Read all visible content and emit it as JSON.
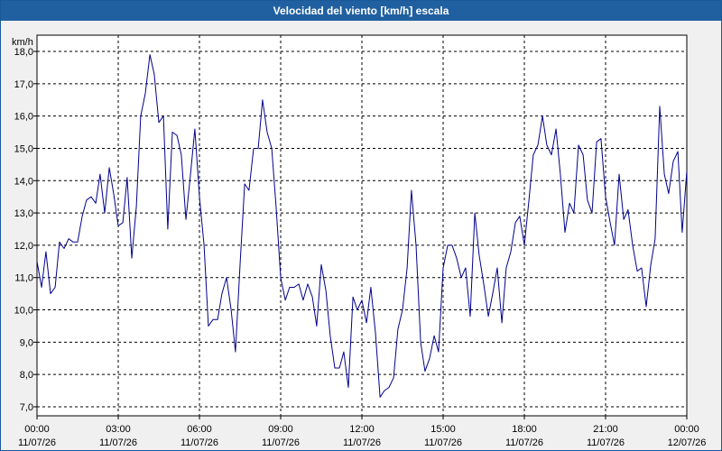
{
  "window": {
    "title": "Velocidad del viento [km/h] escala"
  },
  "chart_data": {
    "type": "line",
    "title": "Velocidad del viento [km/h] escala",
    "ylabel": "km/h",
    "xlabel": "",
    "ylim": [
      7.0,
      18.0
    ],
    "yticks": [
      7.0,
      8.0,
      9.0,
      10.0,
      11.0,
      12.0,
      13.0,
      14.0,
      15.0,
      16.0,
      17.0,
      18.0
    ],
    "ytick_labels": [
      "7,0",
      "8,0",
      "9,0",
      "10,0",
      "11,0",
      "12,0",
      "13,0",
      "14,0",
      "15,0",
      "16,0",
      "17,0",
      "18,0"
    ],
    "xlim": [
      0,
      24
    ],
    "xticks": [
      {
        "hour": 0,
        "time": "00:00",
        "date": "11/07/26"
      },
      {
        "hour": 3,
        "time": "03:00",
        "date": "11/07/26"
      },
      {
        "hour": 6,
        "time": "06:00",
        "date": "11/07/26"
      },
      {
        "hour": 9,
        "time": "09:00",
        "date": "11/07/26"
      },
      {
        "hour": 12,
        "time": "12:00",
        "date": "11/07/26"
      },
      {
        "hour": 15,
        "time": "15:00",
        "date": "11/07/26"
      },
      {
        "hour": 18,
        "time": "18:00",
        "date": "11/07/26"
      },
      {
        "hour": 21,
        "time": "21:00",
        "date": "11/07/26"
      },
      {
        "hour": 24,
        "time": "00:00",
        "date": "12/07/26"
      }
    ],
    "grid": true,
    "line_color": "#00008b",
    "series": [
      {
        "name": "",
        "x": [
          0.0,
          0.17,
          0.33,
          0.5,
          0.67,
          0.83,
          1.0,
          1.17,
          1.33,
          1.5,
          1.67,
          1.83,
          2.0,
          2.17,
          2.33,
          2.5,
          2.67,
          2.83,
          3.0,
          3.17,
          3.33,
          3.5,
          3.67,
          3.83,
          4.0,
          4.17,
          4.33,
          4.5,
          4.67,
          4.83,
          5.0,
          5.17,
          5.33,
          5.5,
          5.67,
          5.83,
          6.0,
          6.17,
          6.33,
          6.5,
          6.67,
          6.83,
          7.0,
          7.17,
          7.33,
          7.5,
          7.67,
          7.83,
          8.0,
          8.17,
          8.33,
          8.5,
          8.67,
          8.83,
          9.0,
          9.17,
          9.33,
          9.5,
          9.67,
          9.83,
          10.0,
          10.17,
          10.33,
          10.5,
          10.67,
          10.83,
          11.0,
          11.17,
          11.33,
          11.5,
          11.67,
          11.83,
          12.0,
          12.17,
          12.33,
          12.5,
          12.67,
          12.83,
          13.0,
          13.17,
          13.33,
          13.5,
          13.67,
          13.83,
          14.0,
          14.17,
          14.33,
          14.5,
          14.67,
          14.83,
          15.0,
          15.17,
          15.33,
          15.5,
          15.67,
          15.83,
          16.0,
          16.17,
          16.33,
          16.5,
          16.67,
          16.83,
          17.0,
          17.17,
          17.33,
          17.5,
          17.67,
          17.83,
          18.0,
          18.17,
          18.33,
          18.5,
          18.67,
          18.83,
          19.0,
          19.17,
          19.33,
          19.5,
          19.67,
          19.83,
          20.0,
          20.17,
          20.33,
          20.5,
          20.67,
          20.83,
          21.0,
          21.17,
          21.33,
          21.5,
          21.67,
          21.83,
          22.0,
          22.17,
          22.33,
          22.5,
          22.67,
          22.83,
          23.0,
          23.17,
          23.33,
          23.5,
          23.67,
          23.83,
          24.0
        ],
        "y": [
          11.5,
          10.7,
          11.8,
          10.5,
          10.7,
          12.1,
          11.9,
          12.2,
          12.1,
          12.1,
          12.9,
          13.4,
          13.5,
          13.3,
          14.2,
          13.0,
          14.4,
          13.6,
          12.6,
          12.7,
          14.1,
          11.6,
          13.2,
          16.0,
          16.7,
          17.9,
          17.3,
          15.8,
          16.0,
          12.5,
          15.5,
          15.4,
          14.8,
          12.8,
          14.2,
          15.6,
          13.5,
          12.0,
          9.5,
          9.7,
          9.7,
          10.5,
          11.0,
          10.0,
          8.7,
          11.4,
          13.9,
          13.7,
          15.0,
          15.0,
          16.5,
          15.5,
          15.0,
          13.2,
          11.0,
          10.3,
          10.7,
          10.7,
          10.8,
          10.3,
          10.8,
          10.4,
          9.5,
          11.4,
          10.6,
          9.2,
          8.2,
          8.2,
          8.7,
          7.6,
          10.4,
          10.0,
          10.3,
          9.6,
          10.7,
          9.3,
          7.3,
          7.5,
          7.6,
          7.9,
          9.4,
          10.0,
          11.3,
          13.7,
          12.0,
          9.0,
          8.1,
          8.5,
          9.2,
          8.7,
          11.3,
          12.0,
          12.0,
          11.6,
          11.0,
          11.3,
          9.8,
          13.0,
          11.7,
          10.8,
          9.8,
          10.5,
          11.3,
          9.6,
          11.3,
          11.8,
          12.7,
          12.9,
          12.0,
          13.4,
          14.8,
          15.1,
          16.0,
          15.1,
          14.8,
          15.6,
          14.2,
          12.4,
          13.3,
          13.0,
          15.1,
          14.8,
          13.4,
          13.0,
          15.2,
          15.3,
          13.5,
          12.7,
          12.0,
          14.2,
          12.8,
          13.1,
          12.0,
          11.2,
          11.3,
          10.1,
          11.4,
          12.2,
          16.3,
          14.2,
          13.6,
          14.6,
          14.9,
          12.4,
          14.3
        ]
      }
    ]
  }
}
